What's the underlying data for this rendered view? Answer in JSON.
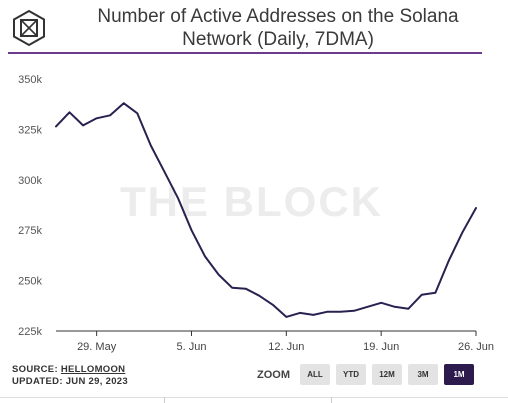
{
  "header": {
    "title_line1": "Number of Active Addresses on the Solana",
    "title_line2": "Network (Daily, 7DMA)"
  },
  "watermark": "THE BLOCK",
  "footer": {
    "source_label": "SOURCE:",
    "source_name": "HELLOMOON",
    "updated": "UPDATED: JUN 29, 2023"
  },
  "zoom": {
    "label": "ZOOM",
    "buttons": [
      "ALL",
      "YTD",
      "12M",
      "3M",
      "1M"
    ],
    "active": "1M"
  },
  "colors": {
    "line": "#2b2150",
    "accent_rule": "#6d3b8e"
  },
  "chart_data": {
    "type": "line",
    "title": "Number of Active Addresses on the Solana Network (Daily, 7DMA)",
    "xlabel": "",
    "ylabel": "",
    "ylim": [
      225000,
      350000
    ],
    "y_ticks": [
      225000,
      250000,
      275000,
      300000,
      325000,
      350000
    ],
    "y_tick_labels": [
      "225k",
      "250k",
      "275k",
      "300k",
      "325k",
      "350k"
    ],
    "x_tick_labels": [
      "29. May",
      "5. Jun",
      "12. Jun",
      "19. Jun",
      "26. Jun"
    ],
    "grid": false,
    "series": [
      {
        "values": [
          326500,
          333500,
          327000,
          330500,
          332000,
          338000,
          333000,
          317000,
          304000,
          291000,
          275000,
          262000,
          253000,
          246500,
          246000,
          242500,
          238000,
          232000,
          234000,
          233000,
          234500,
          234500,
          235000,
          237000,
          239000,
          237000,
          236000,
          243000,
          244000,
          260000,
          274000,
          286000
        ]
      }
    ]
  }
}
